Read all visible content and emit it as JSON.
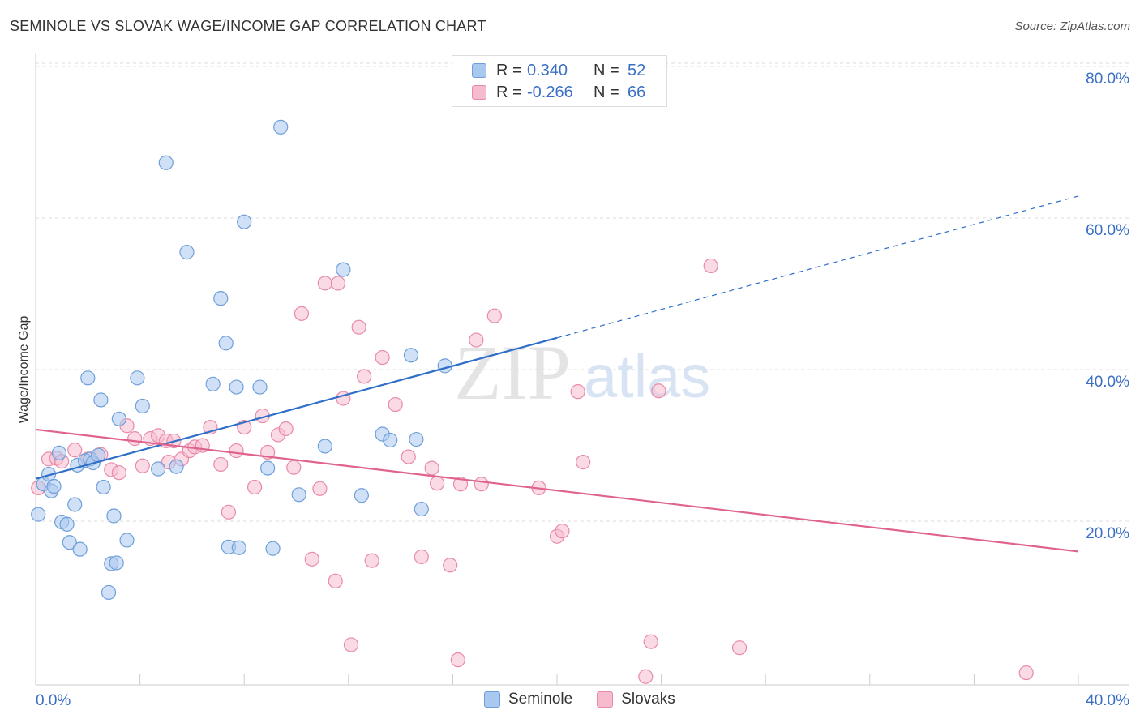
{
  "title": "SEMINOLE VS SLOVAK WAGE/INCOME GAP CORRELATION CHART",
  "source": "Source: ZipAtlas.com",
  "watermark": {
    "zip": "ZIP",
    "atlas": "atlas"
  },
  "legend": {
    "rows": [
      {
        "r_label": "R =",
        "r_value": "0.340",
        "n_label": "N =",
        "n_value": "52"
      },
      {
        "r_label": "R =",
        "r_value": "-0.266",
        "n_label": "N =",
        "n_value": "66"
      }
    ]
  },
  "bottom_legend": {
    "seminole": "Seminole",
    "slovaks": "Slovaks"
  },
  "colors": {
    "seminole_fill": "#a9c8f0",
    "seminole_stroke": "#6f9fd8",
    "seminole_line": "#2f6fc9",
    "slovak_fill": "#f6bccd",
    "slovak_stroke": "#e98aa8",
    "slovak_line": "#e0638e",
    "axis_text": "#3a6fc4",
    "grid": "#dddddd"
  },
  "chart_data": {
    "type": "scatter",
    "title": "SEMINOLE VS SLOVAK WAGE/INCOME GAP CORRELATION CHART",
    "xlabel": "",
    "ylabel": "Wage/Income Gap",
    "xlim": [
      0,
      40
    ],
    "ylim": [
      0,
      80
    ],
    "x_tick_labels": [
      "0.0%",
      "40.0%"
    ],
    "y_ticks": [
      20,
      40,
      60,
      80
    ],
    "y_tick_labels": [
      "20.0%",
      "40.0%",
      "60.0%",
      "80.0%"
    ],
    "grid": true,
    "series": [
      {
        "name": "Seminole",
        "r": 0.34,
        "n": 52,
        "trend": {
          "x_start": 0,
          "y_start": 27.2,
          "x_solid_end": 20,
          "y_solid_end": 45.8,
          "x_end": 40,
          "y_end": 64.5
        },
        "points": [
          [
            0.1,
            22.5
          ],
          [
            0.3,
            26.5
          ],
          [
            0.5,
            27.8
          ],
          [
            0.6,
            25.6
          ],
          [
            0.7,
            26.2
          ],
          [
            0.9,
            30.6
          ],
          [
            1.0,
            21.5
          ],
          [
            1.2,
            21.2
          ],
          [
            1.3,
            18.8
          ],
          [
            1.5,
            23.8
          ],
          [
            1.6,
            29.0
          ],
          [
            1.7,
            17.9
          ],
          [
            1.9,
            29.6
          ],
          [
            2.0,
            40.5
          ],
          [
            2.1,
            29.8
          ],
          [
            2.2,
            29.3
          ],
          [
            2.4,
            30.3
          ],
          [
            2.5,
            37.6
          ],
          [
            2.6,
            26.1
          ],
          [
            2.8,
            12.2
          ],
          [
            2.9,
            16.0
          ],
          [
            3.0,
            22.3
          ],
          [
            3.1,
            16.1
          ],
          [
            3.2,
            35.1
          ],
          [
            3.5,
            19.1
          ],
          [
            3.9,
            40.5
          ],
          [
            4.1,
            36.8
          ],
          [
            4.7,
            28.5
          ],
          [
            5.0,
            68.9
          ],
          [
            5.4,
            28.8
          ],
          [
            5.8,
            57.1
          ],
          [
            6.8,
            39.7
          ],
          [
            7.1,
            51.0
          ],
          [
            7.3,
            45.1
          ],
          [
            7.4,
            18.2
          ],
          [
            7.7,
            39.3
          ],
          [
            7.8,
            18.1
          ],
          [
            8.0,
            61.1
          ],
          [
            8.6,
            39.3
          ],
          [
            8.9,
            28.6
          ],
          [
            9.1,
            18.0
          ],
          [
            9.4,
            73.6
          ],
          [
            10.1,
            25.1
          ],
          [
            11.1,
            31.5
          ],
          [
            11.8,
            54.8
          ],
          [
            12.5,
            25.0
          ],
          [
            13.3,
            33.1
          ],
          [
            13.6,
            32.3
          ],
          [
            14.4,
            43.5
          ],
          [
            14.6,
            32.4
          ],
          [
            14.8,
            23.2
          ],
          [
            15.7,
            42.1
          ]
        ]
      },
      {
        "name": "Slovaks",
        "r": -0.266,
        "n": 66,
        "trend": {
          "x_start": 0,
          "y_start": 33.7,
          "x_end": 40,
          "y_end": 17.6
        },
        "points": [
          [
            0.1,
            26.0
          ],
          [
            0.5,
            29.8
          ],
          [
            0.8,
            29.9
          ],
          [
            1.0,
            29.5
          ],
          [
            1.5,
            31.0
          ],
          [
            2.0,
            29.8
          ],
          [
            2.5,
            30.4
          ],
          [
            2.9,
            28.4
          ],
          [
            3.2,
            28.0
          ],
          [
            3.5,
            34.2
          ],
          [
            3.8,
            32.5
          ],
          [
            4.1,
            28.9
          ],
          [
            4.4,
            32.5
          ],
          [
            4.7,
            32.9
          ],
          [
            5.0,
            32.2
          ],
          [
            5.1,
            29.4
          ],
          [
            5.3,
            32.2
          ],
          [
            5.6,
            29.8
          ],
          [
            5.9,
            30.9
          ],
          [
            6.1,
            31.4
          ],
          [
            6.4,
            31.6
          ],
          [
            6.7,
            34.0
          ],
          [
            7.1,
            29.1
          ],
          [
            7.4,
            22.8
          ],
          [
            7.7,
            30.9
          ],
          [
            8.0,
            34.0
          ],
          [
            8.4,
            26.1
          ],
          [
            8.7,
            35.5
          ],
          [
            8.9,
            30.7
          ],
          [
            9.3,
            33.0
          ],
          [
            9.6,
            33.8
          ],
          [
            9.9,
            28.7
          ],
          [
            10.2,
            49.0
          ],
          [
            10.6,
            16.6
          ],
          [
            10.9,
            25.9
          ],
          [
            11.1,
            53.0
          ],
          [
            11.5,
            13.7
          ],
          [
            11.6,
            53.0
          ],
          [
            11.8,
            37.8
          ],
          [
            12.1,
            5.3
          ],
          [
            12.4,
            47.2
          ],
          [
            12.6,
            40.7
          ],
          [
            12.9,
            16.4
          ],
          [
            13.3,
            43.2
          ],
          [
            13.8,
            37.0
          ],
          [
            14.3,
            30.1
          ],
          [
            14.8,
            16.9
          ],
          [
            15.2,
            28.6
          ],
          [
            15.4,
            26.6
          ],
          [
            15.9,
            15.8
          ],
          [
            16.2,
            3.3
          ],
          [
            16.3,
            26.5
          ],
          [
            16.9,
            45.5
          ],
          [
            17.1,
            26.5
          ],
          [
            17.6,
            48.7
          ],
          [
            19.3,
            26.0
          ],
          [
            20.0,
            19.6
          ],
          [
            20.2,
            20.3
          ],
          [
            20.8,
            38.7
          ],
          [
            21.0,
            29.4
          ],
          [
            23.4,
            1.1
          ],
          [
            23.6,
            5.7
          ],
          [
            23.9,
            38.8
          ],
          [
            25.9,
            55.3
          ],
          [
            27.0,
            4.9
          ],
          [
            38.0,
            1.6
          ]
        ]
      }
    ]
  }
}
